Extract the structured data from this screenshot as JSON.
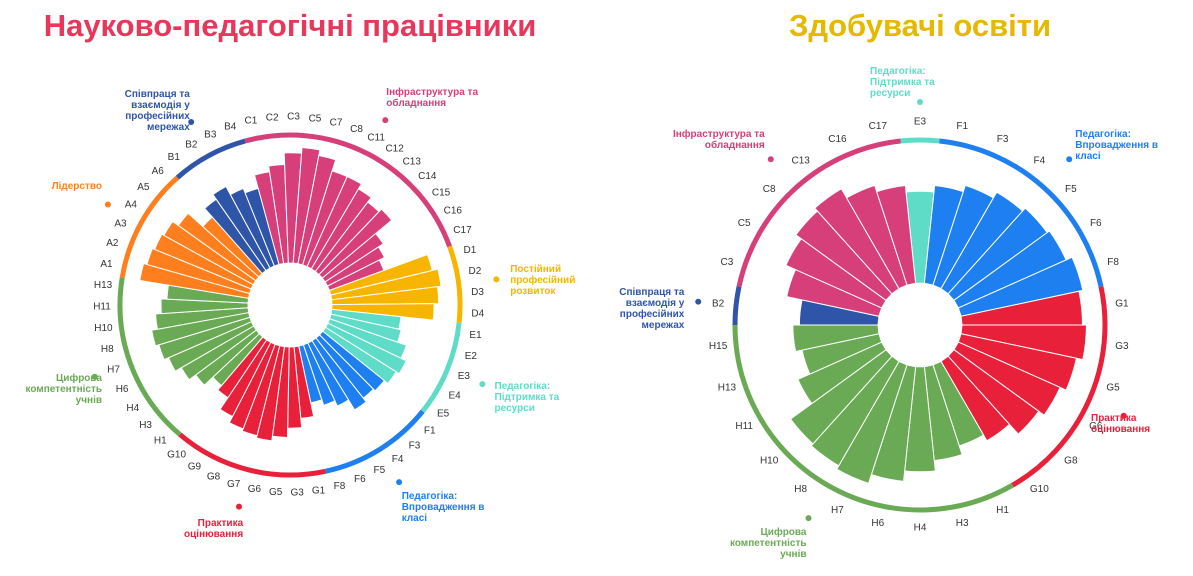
{
  "chart_data": [
    {
      "type": "radial_bar",
      "title": "Науково-педагогічні працівники",
      "title_color": "#e8375a",
      "ylim": [
        0,
        100
      ],
      "groups": [
        {
          "name": "Інфраструктура та обладнання",
          "color": "#d63f7a",
          "categories": [
            "C1",
            "C2",
            "C3",
            "C5",
            "C7",
            "C8",
            "C11",
            "C12",
            "C13",
            "C14",
            "C15",
            "C16",
            "C17"
          ],
          "values": [
            80,
            85,
            95,
            100,
            95,
            85,
            85,
            80,
            75,
            78,
            60,
            55,
            50
          ]
        },
        {
          "name": "Постійний професійний розвиток",
          "color": "#f7b500",
          "categories": [
            "D1",
            "D2",
            "D3",
            "D4"
          ],
          "values": [
            90,
            95,
            92,
            88
          ]
        },
        {
          "name": "Педагогіка: Підтримка та ресурси",
          "color": "#5fdcc8",
          "categories": [
            "E1",
            "E2",
            "E3",
            "E4",
            "E5"
          ],
          "values": [
            60,
            62,
            70,
            75,
            72
          ]
        },
        {
          "name": "Педагогіка: Впровадження в класі",
          "color": "#1e80f0",
          "categories": [
            "F1",
            "F3",
            "F4",
            "F5",
            "F6",
            "F8"
          ],
          "values": [
            68,
            66,
            70,
            60,
            55,
            50
          ]
        },
        {
          "name": "Практика оцінювання",
          "color": "#e8203a",
          "categories": [
            "G1",
            "G3",
            "G5",
            "G6",
            "G7",
            "G8",
            "G9",
            "G10"
          ],
          "values": [
            62,
            70,
            78,
            82,
            80,
            78,
            72,
            60
          ]
        },
        {
          "name": "Цифрова компетентність учнів",
          "color": "#6aaa55",
          "categories": [
            "H1",
            "H3",
            "H4",
            "H6",
            "H7",
            "H8",
            "H10",
            "H11",
            "H13"
          ],
          "values": [
            55,
            65,
            72,
            78,
            82,
            85,
            80,
            75,
            70
          ]
        },
        {
          "name": "Лідерство",
          "color": "#ff7f1e",
          "categories": [
            "A1",
            "A2",
            "A3",
            "A4",
            "A5",
            "A6"
          ],
          "values": [
            95,
            92,
            90,
            88,
            82,
            65
          ]
        },
        {
          "name": "Співпраця та взаємодія у професійних мережах",
          "color": "#2f55a8",
          "categories": [
            "B1",
            "B2",
            "B3",
            "B4"
          ],
          "values": [
            75,
            80,
            72,
            68
          ]
        }
      ]
    },
    {
      "type": "radial_bar",
      "title": "Здобувачі освіти",
      "title_color": "#e6b800",
      "ylim": [
        0,
        100
      ],
      "groups": [
        {
          "name": "Педагогіка: Підтримка та ресурси",
          "color": "#5fdcc8",
          "categories": [
            "E3"
          ],
          "values": [
            70
          ]
        },
        {
          "name": "Педагогіка: Впровадження в класі",
          "color": "#1e80f0",
          "categories": [
            "F1",
            "F3",
            "F4",
            "F5",
            "F6",
            "F8"
          ],
          "values": [
            75,
            80,
            85,
            88,
            90,
            95
          ]
        },
        {
          "name": "Практика оцінювання",
          "color": "#e8203a",
          "categories": [
            "G1",
            "G3",
            "G5",
            "G6",
            "G8",
            "G10"
          ],
          "values": [
            92,
            95,
            90,
            85,
            80,
            70
          ]
        },
        {
          "name": "Цифрова компетентність учнів",
          "color": "#6aaa55",
          "categories": [
            "H1",
            "H3",
            "H4",
            "H6",
            "H7",
            "H8",
            "H10",
            "H11",
            "H13",
            "H15"
          ],
          "values": [
            65,
            72,
            80,
            88,
            95,
            92,
            90,
            70,
            60,
            65
          ]
        },
        {
          "name": "Співпраця та взаємодія у професійних мережах",
          "color": "#2f55a8",
          "categories": [
            "B2"
          ],
          "values": [
            60
          ]
        },
        {
          "name": "Інфраструктура та обладнання",
          "color": "#d63f7a",
          "categories": [
            "C3",
            "C5",
            "C8",
            "C13",
            "C16",
            "C17"
          ],
          "values": [
            72,
            80,
            85,
            88,
            80,
            75
          ]
        }
      ]
    }
  ]
}
